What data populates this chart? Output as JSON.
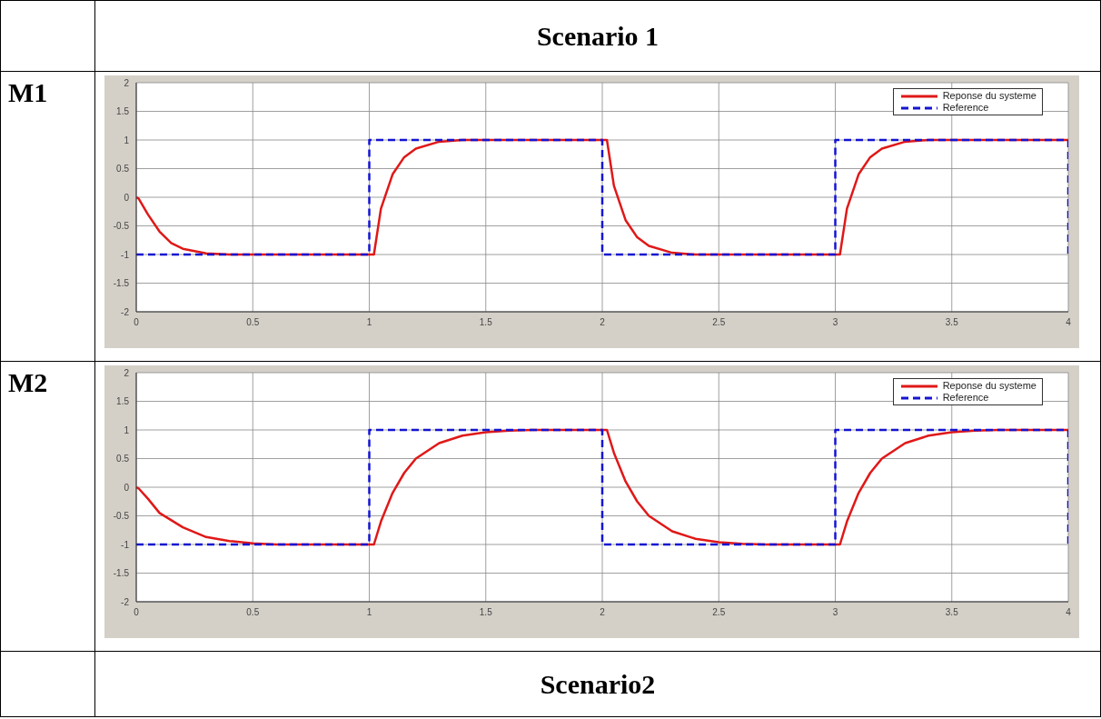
{
  "chart_data": [
    {
      "type": "line",
      "title": "M1",
      "annotations": [
        "Scenario 1"
      ],
      "xlim": [
        0,
        4
      ],
      "xticks": [
        0,
        0.5,
        1,
        1.5,
        2,
        2.5,
        3,
        3.5,
        4
      ],
      "ylim": [
        -2,
        2
      ],
      "yticks": [
        -2,
        -1.5,
        -1,
        -0.5,
        0,
        0.5,
        1,
        1.5,
        2
      ],
      "grid": true,
      "legend": "top right",
      "series": [
        {
          "name": "Reponse du systeme",
          "color": "#e01818",
          "line_style": "solid",
          "x": [
            0,
            0.01,
            0.05,
            0.1,
            0.15,
            0.2,
            0.3,
            0.4,
            1,
            1.02,
            1.05,
            1.1,
            1.15,
            1.2,
            1.3,
            1.4,
            2,
            2.02,
            2.05,
            2.1,
            2.15,
            2.2,
            2.3,
            2.4,
            3,
            3.02,
            3.05,
            3.1,
            3.15,
            3.2,
            3.3,
            3.4,
            4
          ],
          "values": [
            0,
            -0.02,
            -0.3,
            -0.6,
            -0.8,
            -0.9,
            -0.98,
            -1,
            -1,
            -1,
            -0.2,
            0.4,
            0.7,
            0.85,
            0.97,
            1,
            1,
            1,
            0.2,
            -0.4,
            -0.7,
            -0.85,
            -0.97,
            -1,
            -1,
            -1,
            -0.2,
            0.4,
            0.7,
            0.85,
            0.97,
            1,
            1
          ]
        },
        {
          "name": "Reference",
          "color": "#1414d2",
          "line_style": "dashed",
          "x": [
            0,
            1,
            1,
            2,
            2,
            3,
            3,
            4,
            4
          ],
          "values": [
            -1,
            -1,
            1,
            1,
            -1,
            -1,
            1,
            1,
            -1
          ]
        }
      ]
    },
    {
      "type": "line",
      "title": "M2",
      "annotations": [
        "Scenario2"
      ],
      "xlim": [
        0,
        4
      ],
      "xticks": [
        0,
        0.5,
        1,
        1.5,
        2,
        2.5,
        3,
        3.5,
        4
      ],
      "ylim": [
        -2,
        2
      ],
      "yticks": [
        -2,
        -1.5,
        -1,
        -0.5,
        0,
        0.5,
        1,
        1.5,
        2
      ],
      "grid": true,
      "legend": "top right",
      "series": [
        {
          "name": "Reponse du systeme",
          "color": "#e01818",
          "line_style": "solid",
          "x": [
            0,
            0.01,
            0.05,
            0.1,
            0.2,
            0.3,
            0.4,
            0.5,
            0.6,
            1,
            1.02,
            1.05,
            1.1,
            1.15,
            1.2,
            1.3,
            1.4,
            1.5,
            1.6,
            1.7,
            2,
            2.02,
            2.05,
            2.1,
            2.15,
            2.2,
            2.3,
            2.4,
            2.5,
            2.6,
            2.7,
            3,
            3.02,
            3.05,
            3.1,
            3.15,
            3.2,
            3.3,
            3.4,
            3.5,
            3.6,
            3.7,
            4
          ],
          "values": [
            0,
            -0.02,
            -0.2,
            -0.45,
            -0.7,
            -0.87,
            -0.94,
            -0.98,
            -1,
            -1,
            -1,
            -0.6,
            -0.1,
            0.25,
            0.5,
            0.77,
            0.9,
            0.96,
            0.99,
            1,
            1,
            1,
            0.6,
            0.1,
            -0.25,
            -0.5,
            -0.77,
            -0.9,
            -0.96,
            -0.99,
            -1,
            -1,
            -1,
            -0.6,
            -0.1,
            0.25,
            0.5,
            0.77,
            0.9,
            0.96,
            0.99,
            1,
            1
          ]
        },
        {
          "name": "Reference",
          "color": "#1414d2",
          "line_style": "dashed",
          "x": [
            0,
            1,
            1,
            2,
            2,
            3,
            3,
            4,
            4
          ],
          "values": [
            -1,
            -1,
            1,
            1,
            -1,
            -1,
            1,
            1,
            -1
          ]
        }
      ]
    }
  ]
}
